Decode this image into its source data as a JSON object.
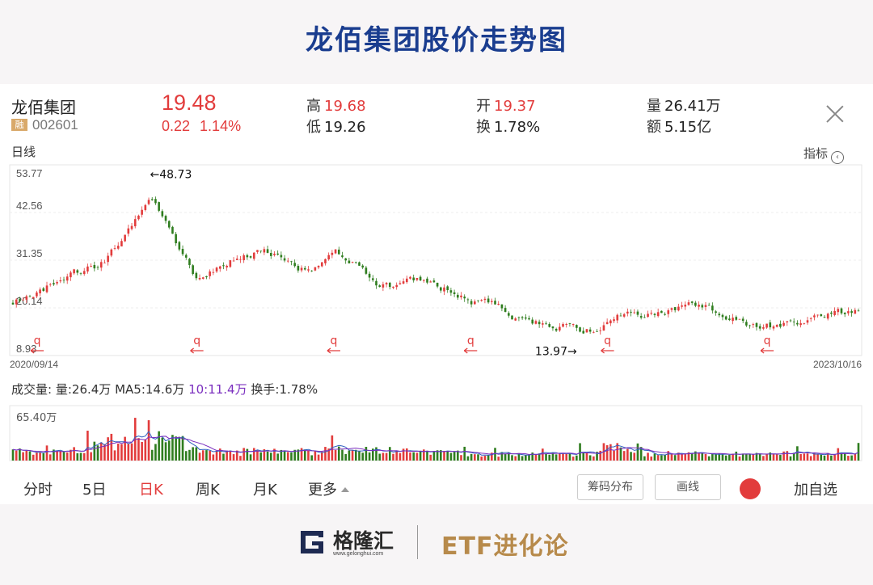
{
  "page_title": "龙佰集团股价走势图",
  "quote": {
    "name": "龙佰集团",
    "badge": "融",
    "code": "002601",
    "price": "19.48",
    "change": "0.22",
    "change_pct": "1.14%",
    "high_label": "高",
    "high": "19.68",
    "low_label": "低",
    "low": "19.26",
    "open_label": "开",
    "open": "19.37",
    "turnover_label": "换",
    "turnover": "1.78%",
    "volume_label": "量",
    "volume": "26.41万",
    "amount_label": "额",
    "amount": "5.15亿"
  },
  "chart_tab": "日线",
  "indicator_label": "指标",
  "indicator_icon": "chevron-left-circle-icon",
  "volume_header": {
    "title": "成交量:",
    "vol": "量:26.4万",
    "ma5": "MA5:14.6万",
    "ma10": "10:11.4万",
    "turnover": "换手:1.78%"
  },
  "bottom_tabs": {
    "fenshi": "分时",
    "five_day": "5日",
    "day_k": "日K",
    "week_k": "周K",
    "month_k": "月K",
    "more": "更多",
    "chip_distribution": "筹码分布",
    "draw_line": "画线",
    "add_watch": "加自选"
  },
  "footer": {
    "logo_text": "格隆汇",
    "logo_url": "www.gelonghui.com",
    "brand": "ETF进化论"
  },
  "colors": {
    "up": "#e23c3c",
    "down": "#2f7d1f",
    "ma10": "#7b2fbf",
    "title": "#1a3d8f"
  },
  "chart_data": {
    "type": "candlestick",
    "x_start": "2020/09/14",
    "x_end": "2023/10/16",
    "y_ticks": [
      "53.77",
      "42.56",
      "31.35",
      "20.14",
      "8.93"
    ],
    "ylim": [
      8.93,
      53.77
    ],
    "annotations": [
      {
        "text": "←48.73",
        "x": "2021/03",
        "y": 48.73
      },
      {
        "text": "13.97→",
        "x": "2022/10",
        "y": 13.97
      }
    ],
    "split_markers": [
      "2020/10",
      "2021/05",
      "2021/11",
      "2022/05",
      "2022/11",
      "2023/06"
    ],
    "split_marker_label": "q",
    "close_series_approx": [
      [
        "2020/09",
        21.5
      ],
      [
        "2020/10",
        23.5
      ],
      [
        "2020/11",
        26.5
      ],
      [
        "2020/12",
        28.5
      ],
      [
        "2021/01",
        31.0
      ],
      [
        "2021/02",
        38.5
      ],
      [
        "2021/03",
        46.5
      ],
      [
        "2021/04",
        37.0
      ],
      [
        "2021/05",
        26.0
      ],
      [
        "2021/06",
        30.5
      ],
      [
        "2021/07",
        33.0
      ],
      [
        "2021/08",
        34.0
      ],
      [
        "2021/09",
        31.0
      ],
      [
        "2021/10",
        28.5
      ],
      [
        "2021/11",
        34.0
      ],
      [
        "2021/12",
        30.0
      ],
      [
        "2022/01",
        25.0
      ],
      [
        "2022/02",
        25.5
      ],
      [
        "2022/03",
        26.5
      ],
      [
        "2022/04",
        24.5
      ],
      [
        "2022/05",
        22.0
      ],
      [
        "2022/06",
        21.0
      ],
      [
        "2022/07",
        18.0
      ],
      [
        "2022/08",
        16.5
      ],
      [
        "2022/09",
        16.0
      ],
      [
        "2022/10",
        14.5
      ],
      [
        "2022/11",
        16.5
      ],
      [
        "2022/12",
        19.0
      ],
      [
        "2023/01",
        18.5
      ],
      [
        "2023/02",
        19.5
      ],
      [
        "2023/03",
        20.5
      ],
      [
        "2023/04",
        19.0
      ],
      [
        "2023/05",
        16.5
      ],
      [
        "2023/06",
        16.0
      ],
      [
        "2023/07",
        16.5
      ],
      [
        "2023/08",
        18.0
      ],
      [
        "2023/09",
        18.5
      ],
      [
        "2023/10",
        19.48
      ]
    ],
    "volume": {
      "y_tick": "65.40万",
      "ylim": [
        0,
        65.4
      ],
      "latest": 26.41
    }
  }
}
